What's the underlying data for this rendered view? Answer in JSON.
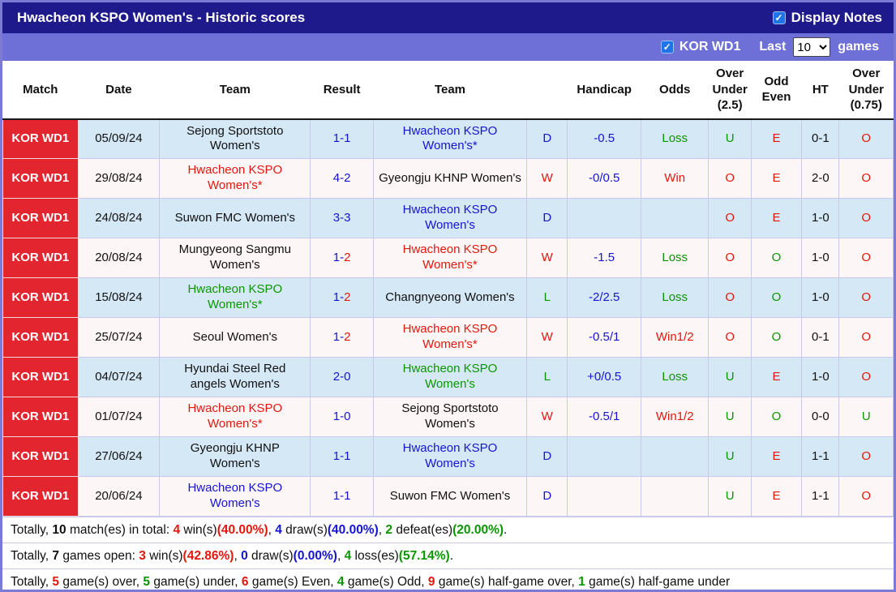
{
  "colors": {
    "red": "#e3170d",
    "green": "#0a9600",
    "blue": "#1414d2",
    "black": "#101010",
    "badge_red": "#e2252e",
    "checkbox_blue": "#1e74e8",
    "title_bar_bg": "#1f1a8c",
    "filter_bar_bg": "#6f6fd8",
    "row_blue_bg": "#d5e8f6",
    "row_white_bg": "#fdf6f6"
  },
  "header": {
    "title": "Hwacheon KSPO Women's - Historic scores",
    "display_notes_label": "Display Notes",
    "display_notes_checked": true,
    "league_label": "KOR WD1",
    "league_checked": true,
    "last_label": "Last",
    "games_count": "10",
    "games_label": "games",
    "check_glyph": "✓"
  },
  "table": {
    "headers": [
      "Match",
      "Date",
      "Team",
      "Result",
      "Team",
      "",
      "Handicap",
      "Odds",
      "Over Under (2.5)",
      "Odd Even",
      "HT",
      "Over Under (0.75)"
    ],
    "rows": [
      {
        "league": "KOR WD1",
        "date": "05/09/24",
        "home": {
          "name": "Sejong Sportstoto Women's",
          "color": "black"
        },
        "result": {
          "home": "1",
          "away": "1",
          "home_color": "blue",
          "away_color": "blue"
        },
        "away": {
          "name": "Hwacheon KSPO Women's*",
          "color": "blue"
        },
        "wld": {
          "text": "D",
          "color": "blue"
        },
        "handicap": "-0.5",
        "odds": {
          "text": "Loss",
          "color": "green"
        },
        "ou25": {
          "text": "U",
          "color": "green"
        },
        "odd_even": {
          "text": "E",
          "color": "red"
        },
        "ht": "0-1",
        "ou075": {
          "text": "O",
          "color": "red"
        }
      },
      {
        "league": "KOR WD1",
        "date": "29/08/24",
        "home": {
          "name": "Hwacheon KSPO Women's*",
          "color": "red"
        },
        "result": {
          "home": "4",
          "away": "2",
          "home_color": "blue",
          "away_color": "blue"
        },
        "away": {
          "name": "Gyeongju KHNP Women's",
          "color": "black"
        },
        "wld": {
          "text": "W",
          "color": "red"
        },
        "handicap": "-0/0.5",
        "odds": {
          "text": "Win",
          "color": "red"
        },
        "ou25": {
          "text": "O",
          "color": "red"
        },
        "odd_even": {
          "text": "E",
          "color": "red"
        },
        "ht": "2-0",
        "ou075": {
          "text": "O",
          "color": "red"
        }
      },
      {
        "league": "KOR WD1",
        "date": "24/08/24",
        "home": {
          "name": "Suwon FMC Women's",
          "color": "black"
        },
        "result": {
          "home": "3",
          "away": "3",
          "home_color": "blue",
          "away_color": "blue"
        },
        "away": {
          "name": "Hwacheon KSPO Women's",
          "color": "blue"
        },
        "wld": {
          "text": "D",
          "color": "blue"
        },
        "handicap": "",
        "odds": {
          "text": "",
          "color": "black"
        },
        "ou25": {
          "text": "O",
          "color": "red"
        },
        "odd_even": {
          "text": "E",
          "color": "red"
        },
        "ht": "1-0",
        "ou075": {
          "text": "O",
          "color": "red"
        }
      },
      {
        "league": "KOR WD1",
        "date": "20/08/24",
        "home": {
          "name": "Mungyeong Sangmu Women's",
          "color": "black"
        },
        "result": {
          "home": "1",
          "away": "2",
          "home_color": "blue",
          "away_color": "red"
        },
        "away": {
          "name": "Hwacheon KSPO Women's*",
          "color": "red"
        },
        "wld": {
          "text": "W",
          "color": "red"
        },
        "handicap": "-1.5",
        "odds": {
          "text": "Loss",
          "color": "green"
        },
        "ou25": {
          "text": "O",
          "color": "red"
        },
        "odd_even": {
          "text": "O",
          "color": "green"
        },
        "ht": "1-0",
        "ou075": {
          "text": "O",
          "color": "red"
        }
      },
      {
        "league": "KOR WD1",
        "date": "15/08/24",
        "home": {
          "name": "Hwacheon KSPO Women's*",
          "color": "green"
        },
        "result": {
          "home": "1",
          "away": "2",
          "home_color": "blue",
          "away_color": "red"
        },
        "away": {
          "name": "Changnyeong Women's",
          "color": "black"
        },
        "wld": {
          "text": "L",
          "color": "green"
        },
        "handicap": "-2/2.5",
        "odds": {
          "text": "Loss",
          "color": "green"
        },
        "ou25": {
          "text": "O",
          "color": "red"
        },
        "odd_even": {
          "text": "O",
          "color": "green"
        },
        "ht": "1-0",
        "ou075": {
          "text": "O",
          "color": "red"
        }
      },
      {
        "league": "KOR WD1",
        "date": "25/07/24",
        "home": {
          "name": "Seoul Women's",
          "color": "black"
        },
        "result": {
          "home": "1",
          "away": "2",
          "home_color": "blue",
          "away_color": "red"
        },
        "away": {
          "name": "Hwacheon KSPO Women's*",
          "color": "red"
        },
        "wld": {
          "text": "W",
          "color": "red"
        },
        "handicap": "-0.5/1",
        "odds": {
          "text": "Win1/2",
          "color": "red"
        },
        "ou25": {
          "text": "O",
          "color": "red"
        },
        "odd_even": {
          "text": "O",
          "color": "green"
        },
        "ht": "0-1",
        "ou075": {
          "text": "O",
          "color": "red"
        }
      },
      {
        "league": "KOR WD1",
        "date": "04/07/24",
        "home": {
          "name": "Hyundai Steel Red angels Women's",
          "color": "black"
        },
        "result": {
          "home": "2",
          "away": "0",
          "home_color": "blue",
          "away_color": "blue"
        },
        "away": {
          "name": "Hwacheon KSPO Women's",
          "color": "green"
        },
        "wld": {
          "text": "L",
          "color": "green"
        },
        "handicap": "+0/0.5",
        "odds": {
          "text": "Loss",
          "color": "green"
        },
        "ou25": {
          "text": "U",
          "color": "green"
        },
        "odd_even": {
          "text": "E",
          "color": "red"
        },
        "ht": "1-0",
        "ou075": {
          "text": "O",
          "color": "red"
        }
      },
      {
        "league": "KOR WD1",
        "date": "01/07/24",
        "home": {
          "name": "Hwacheon KSPO Women's*",
          "color": "red"
        },
        "result": {
          "home": "1",
          "away": "0",
          "home_color": "blue",
          "away_color": "blue"
        },
        "away": {
          "name": "Sejong Sportstoto Women's",
          "color": "black"
        },
        "wld": {
          "text": "W",
          "color": "red"
        },
        "handicap": "-0.5/1",
        "odds": {
          "text": "Win1/2",
          "color": "red"
        },
        "ou25": {
          "text": "U",
          "color": "green"
        },
        "odd_even": {
          "text": "O",
          "color": "green"
        },
        "ht": "0-0",
        "ou075": {
          "text": "U",
          "color": "green"
        }
      },
      {
        "league": "KOR WD1",
        "date": "27/06/24",
        "home": {
          "name": "Gyeongju KHNP Women's",
          "color": "black"
        },
        "result": {
          "home": "1",
          "away": "1",
          "home_color": "blue",
          "away_color": "blue"
        },
        "away": {
          "name": "Hwacheon KSPO Women's",
          "color": "blue"
        },
        "wld": {
          "text": "D",
          "color": "blue"
        },
        "handicap": "",
        "odds": {
          "text": "",
          "color": "black"
        },
        "ou25": {
          "text": "U",
          "color": "green"
        },
        "odd_even": {
          "text": "E",
          "color": "red"
        },
        "ht": "1-1",
        "ou075": {
          "text": "O",
          "color": "red"
        }
      },
      {
        "league": "KOR WD1",
        "date": "20/06/24",
        "home": {
          "name": "Hwacheon KSPO Women's",
          "color": "blue"
        },
        "result": {
          "home": "1",
          "away": "1",
          "home_color": "blue",
          "away_color": "blue"
        },
        "away": {
          "name": "Suwon FMC Women's",
          "color": "black"
        },
        "wld": {
          "text": "D",
          "color": "blue"
        },
        "handicap": "",
        "odds": {
          "text": "",
          "color": "black"
        },
        "ou25": {
          "text": "U",
          "color": "green"
        },
        "odd_even": {
          "text": "E",
          "color": "red"
        },
        "ht": "1-1",
        "ou075": {
          "text": "O",
          "color": "red"
        }
      }
    ]
  },
  "footer": {
    "lines": [
      [
        {
          "t": "Totally, "
        },
        {
          "t": "10",
          "b": true
        },
        {
          "t": " match(es) in total: "
        },
        {
          "t": "4",
          "c": "red",
          "b": true
        },
        {
          "t": " win(s)"
        },
        {
          "t": "(40.00%)",
          "c": "red",
          "b": true
        },
        {
          "t": ", "
        },
        {
          "t": "4",
          "c": "blue",
          "b": true
        },
        {
          "t": " draw(s)"
        },
        {
          "t": "(40.00%)",
          "c": "blue",
          "b": true
        },
        {
          "t": ", "
        },
        {
          "t": "2",
          "c": "green",
          "b": true
        },
        {
          "t": " defeat(es)"
        },
        {
          "t": "(20.00%)",
          "c": "green",
          "b": true
        },
        {
          "t": "."
        }
      ],
      [
        {
          "t": "Totally, "
        },
        {
          "t": "7",
          "b": true
        },
        {
          "t": " games open: "
        },
        {
          "t": "3",
          "c": "red",
          "b": true
        },
        {
          "t": " win(s)"
        },
        {
          "t": "(42.86%)",
          "c": "red",
          "b": true
        },
        {
          "t": ", "
        },
        {
          "t": "0",
          "c": "blue",
          "b": true
        },
        {
          "t": " draw(s)"
        },
        {
          "t": "(0.00%)",
          "c": "blue",
          "b": true
        },
        {
          "t": ", "
        },
        {
          "t": "4",
          "c": "green",
          "b": true
        },
        {
          "t": " loss(es)"
        },
        {
          "t": "(57.14%)",
          "c": "green",
          "b": true
        },
        {
          "t": "."
        }
      ],
      [
        {
          "t": "Totally, "
        },
        {
          "t": "5",
          "c": "red",
          "b": true
        },
        {
          "t": " game(s) over, "
        },
        {
          "t": "5",
          "c": "green",
          "b": true
        },
        {
          "t": " game(s) under, "
        },
        {
          "t": "6",
          "c": "red",
          "b": true
        },
        {
          "t": " game(s) Even, "
        },
        {
          "t": "4",
          "c": "green",
          "b": true
        },
        {
          "t": " game(s) Odd, "
        },
        {
          "t": "9",
          "c": "red",
          "b": true
        },
        {
          "t": " game(s) half-game over, "
        },
        {
          "t": "1",
          "c": "green",
          "b": true
        },
        {
          "t": " game(s) half-game under"
        }
      ]
    ]
  }
}
